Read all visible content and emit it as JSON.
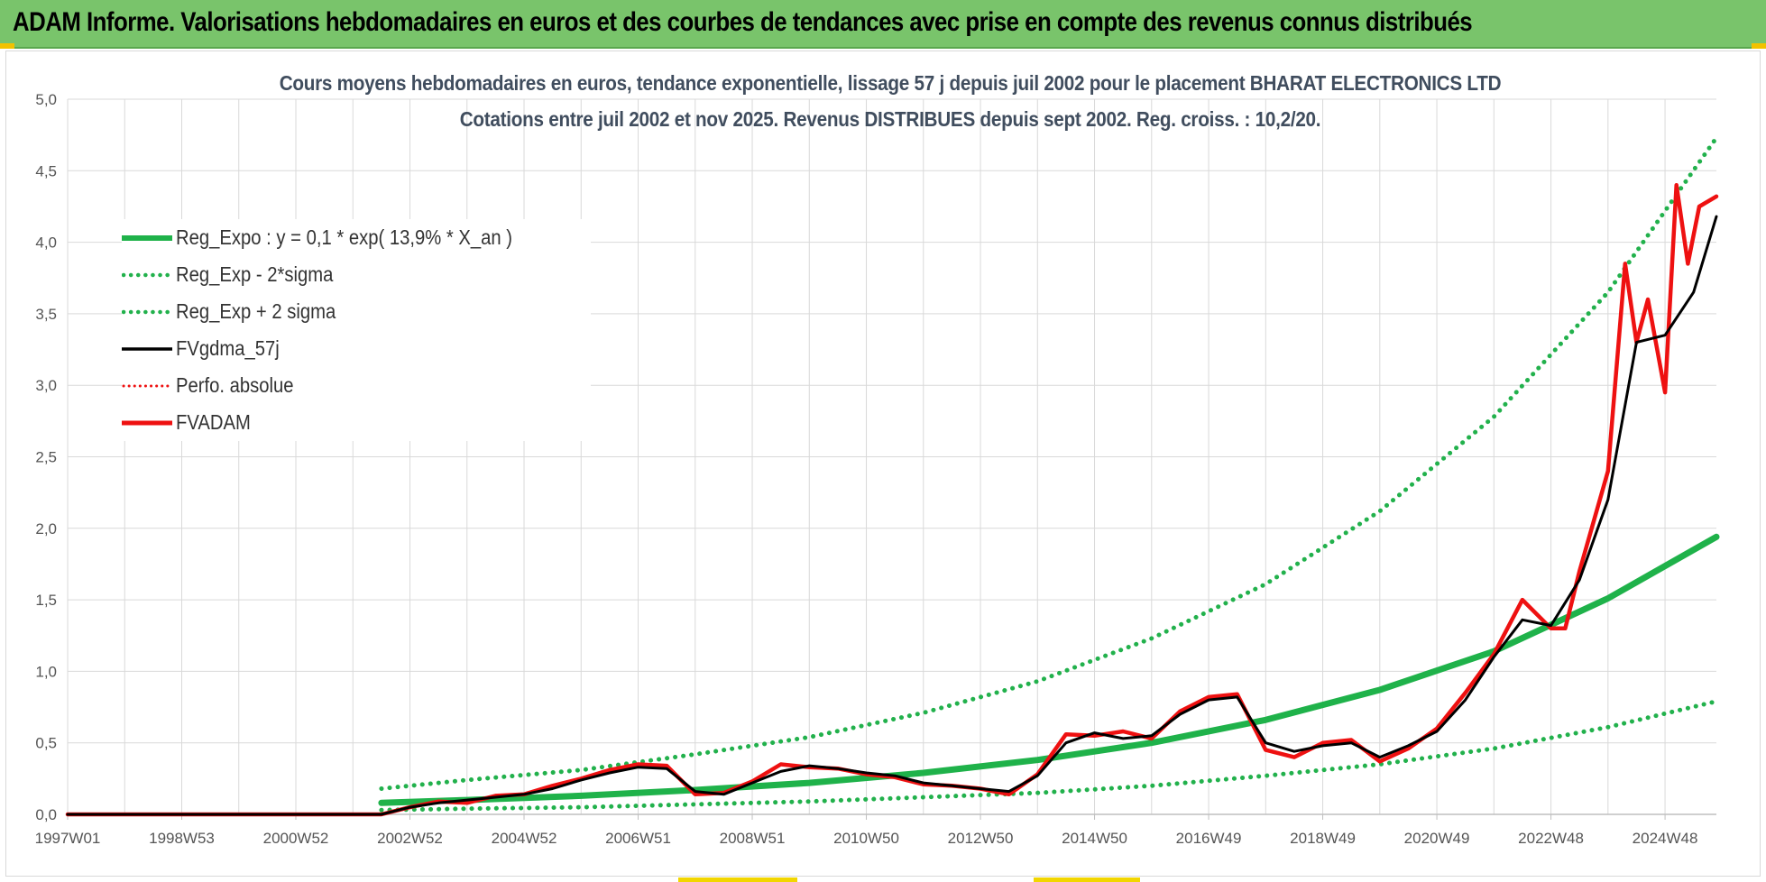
{
  "header": {
    "title": "ADAM Informe. Valorisations hebdomadaires en euros et des courbes de tendances avec prise en compte des revenus connus distribués"
  },
  "colors": {
    "header_bg": "#79c46b",
    "reg_green": "#1fb24a",
    "dotted_green": "#22b14c",
    "fvgdma_black": "#000000",
    "fvadam_red": "#ee1111",
    "grid": "#d9d9d9",
    "title_text": "#404d5e"
  },
  "chart_data": {
    "type": "line",
    "title_line1": "Cours moyens hebdomadaires en euros, tendance exponentielle, lissage 57 j depuis juil 2002 pour le placement BHARAT ELECTRONICS LTD",
    "title_line2": "Cotations entre juil 2002 et nov 2025. Revenus DISTRIBUES depuis sept 2002. Reg. croiss. : 10,2/20.",
    "xlabel": "",
    "ylabel": "",
    "xlim": [
      1997.0,
      2025.9
    ],
    "ylim": [
      0,
      5
    ],
    "y_ticks": [
      "0,0",
      "0,5",
      "1,0",
      "1,5",
      "2,0",
      "2,5",
      "3,0",
      "3,5",
      "4,0",
      "4,5",
      "5,0"
    ],
    "x_ticks": [
      {
        "label": "1997W01",
        "x": 1997.0
      },
      {
        "label": "1998W53",
        "x": 1999.0
      },
      {
        "label": "2000W52",
        "x": 2001.0
      },
      {
        "label": "2002W52",
        "x": 2003.0
      },
      {
        "label": "2004W52",
        "x": 2005.0
      },
      {
        "label": "2006W51",
        "x": 2007.0
      },
      {
        "label": "2008W51",
        "x": 2009.0
      },
      {
        "label": "2010W50",
        "x": 2011.0
      },
      {
        "label": "2012W50",
        "x": 2013.0
      },
      {
        "label": "2014W50",
        "x": 2015.0
      },
      {
        "label": "2016W49",
        "x": 2017.0
      },
      {
        "label": "2018W49",
        "x": 2019.0
      },
      {
        "label": "2020W49",
        "x": 2021.0
      },
      {
        "label": "2022W48",
        "x": 2023.0
      },
      {
        "label": "2024W48",
        "x": 2025.0
      }
    ],
    "grid": true,
    "legend_position": "top-left",
    "series": [
      {
        "name": "Reg_Expo : y = 0,1 * exp( 13,9% *  X_an )",
        "style": "solid-thick",
        "color": "#1fb24a",
        "x": [
          2002.5,
          2004,
          2006,
          2008,
          2010,
          2012,
          2014,
          2016,
          2018,
          2020,
          2022,
          2024,
          2025.9
        ],
        "y": [
          0.08,
          0.1,
          0.13,
          0.17,
          0.22,
          0.29,
          0.38,
          0.5,
          0.66,
          0.87,
          1.14,
          1.51,
          1.94
        ]
      },
      {
        "name": "Reg_Exp - 2*sigma",
        "style": "dotted",
        "color": "#22b14c",
        "x": [
          2002.5,
          2004,
          2006,
          2008,
          2010,
          2012,
          2014,
          2016,
          2018,
          2020,
          2022,
          2024,
          2025.9
        ],
        "y": [
          0.03,
          0.04,
          0.05,
          0.07,
          0.09,
          0.12,
          0.15,
          0.2,
          0.27,
          0.35,
          0.46,
          0.61,
          0.79
        ]
      },
      {
        "name": "Reg_Exp + 2 sigma",
        "style": "dotted",
        "color": "#22b14c",
        "x": [
          2002.5,
          2004,
          2006,
          2008,
          2010,
          2012,
          2014,
          2016,
          2018,
          2020,
          2022,
          2024,
          2025.9
        ],
        "y": [
          0.18,
          0.24,
          0.31,
          0.42,
          0.54,
          0.71,
          0.93,
          1.23,
          1.61,
          2.12,
          2.78,
          3.65,
          4.73
        ]
      },
      {
        "name": "FVgdma_57j",
        "style": "solid",
        "color": "#000000",
        "x": [
          1997.0,
          2002.5,
          2003.0,
          2003.5,
          2004.0,
          2004.5,
          2005.0,
          2005.5,
          2006.0,
          2006.5,
          2007.0,
          2007.5,
          2008.0,
          2008.5,
          2009.0,
          2009.5,
          2010.0,
          2010.5,
          2011.0,
          2011.5,
          2012.0,
          2012.5,
          2013.0,
          2013.5,
          2014.0,
          2014.5,
          2015.0,
          2015.5,
          2016.0,
          2016.5,
          2017.0,
          2017.5,
          2018.0,
          2018.5,
          2019.0,
          2019.5,
          2020.0,
          2020.5,
          2021.0,
          2021.5,
          2022.0,
          2022.5,
          2023.0,
          2023.5,
          2024.0,
          2024.5,
          2025.0,
          2025.5,
          2025.9
        ],
        "y": [
          0.0,
          0.0,
          0.05,
          0.08,
          0.1,
          0.12,
          0.14,
          0.18,
          0.24,
          0.29,
          0.33,
          0.32,
          0.16,
          0.14,
          0.22,
          0.3,
          0.34,
          0.32,
          0.29,
          0.27,
          0.22,
          0.2,
          0.18,
          0.16,
          0.27,
          0.5,
          0.57,
          0.53,
          0.55,
          0.7,
          0.8,
          0.82,
          0.5,
          0.44,
          0.48,
          0.5,
          0.4,
          0.48,
          0.58,
          0.8,
          1.1,
          1.36,
          1.32,
          1.64,
          2.2,
          3.3,
          3.35,
          3.65,
          4.18
        ]
      },
      {
        "name": "Perfo. absolue",
        "style": "dotted",
        "color": "#ee1111",
        "x": [
          1997.0,
          2002.5,
          2003.0,
          2003.5,
          2004.0,
          2004.5,
          2005.0,
          2005.5,
          2006.0,
          2006.5,
          2007.0,
          2007.5,
          2008.0,
          2008.5,
          2009.0,
          2009.5,
          2010.0,
          2010.5,
          2011.0,
          2011.5,
          2012.0,
          2012.5,
          2013.0,
          2013.5,
          2014.0,
          2014.5,
          2015.0,
          2015.5,
          2016.0,
          2016.5,
          2017.0,
          2017.5,
          2018.0,
          2018.5,
          2019.0,
          2019.5,
          2020.0,
          2020.5,
          2021.0,
          2021.5,
          2022.0,
          2022.5,
          2023.0,
          2023.5,
          2024.0,
          2024.5,
          2025.0,
          2025.5,
          2025.9
        ],
        "y": [
          0.0,
          0.0,
          0.05,
          0.08,
          0.1,
          0.12,
          0.14,
          0.18,
          0.24,
          0.29,
          0.33,
          0.32,
          0.16,
          0.14,
          0.22,
          0.3,
          0.34,
          0.32,
          0.29,
          0.27,
          0.22,
          0.2,
          0.18,
          0.16,
          0.27,
          0.5,
          0.57,
          0.53,
          0.55,
          0.7,
          0.8,
          0.82,
          0.5,
          0.44,
          0.48,
          0.5,
          0.4,
          0.48,
          0.58,
          0.8,
          1.1,
          1.36,
          1.32,
          1.64,
          2.2,
          3.3,
          3.35,
          3.65,
          4.18
        ]
      },
      {
        "name": "FVADAM",
        "style": "solid-thick",
        "color": "#ee1111",
        "x": [
          1997.0,
          2002.5,
          2003.0,
          2003.5,
          2004.0,
          2004.5,
          2005.0,
          2005.5,
          2006.0,
          2006.5,
          2007.0,
          2007.5,
          2008.0,
          2008.5,
          2009.0,
          2009.5,
          2010.0,
          2010.5,
          2011.0,
          2011.5,
          2012.0,
          2012.5,
          2013.0,
          2013.5,
          2014.0,
          2014.5,
          2015.0,
          2015.5,
          2016.0,
          2016.5,
          2017.0,
          2017.5,
          2018.0,
          2018.5,
          2019.0,
          2019.5,
          2020.0,
          2020.5,
          2021.0,
          2021.5,
          2022.0,
          2022.5,
          2023.0,
          2023.25,
          2023.5,
          2024.0,
          2024.3,
          2024.5,
          2024.7,
          2025.0,
          2025.2,
          2025.4,
          2025.6,
          2025.9
        ],
        "y": [
          0.0,
          0.0,
          0.05,
          0.09,
          0.08,
          0.13,
          0.14,
          0.2,
          0.25,
          0.31,
          0.35,
          0.34,
          0.14,
          0.15,
          0.23,
          0.35,
          0.33,
          0.32,
          0.28,
          0.26,
          0.21,
          0.2,
          0.18,
          0.14,
          0.28,
          0.56,
          0.55,
          0.58,
          0.53,
          0.72,
          0.82,
          0.84,
          0.45,
          0.4,
          0.5,
          0.52,
          0.37,
          0.46,
          0.6,
          0.85,
          1.12,
          1.5,
          1.3,
          1.3,
          1.7,
          2.4,
          3.85,
          3.3,
          3.6,
          2.95,
          4.4,
          3.85,
          4.25,
          4.32
        ]
      }
    ]
  }
}
